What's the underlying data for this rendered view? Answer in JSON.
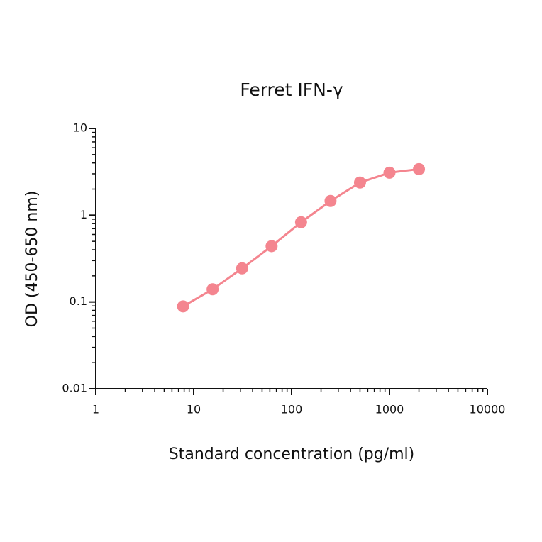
{
  "chart_data": {
    "type": "line",
    "title": "Ferret IFN-γ",
    "x_label": "Standard concentration (pg/ml)",
    "y_label": "OD (450-650 nm)",
    "x_log": true,
    "y_log": true,
    "xlim": [
      1,
      10000
    ],
    "xticks": [
      1,
      10,
      100,
      1000,
      10000
    ],
    "ylim": [
      0.01,
      10
    ],
    "yticks": [
      0.01,
      0.1,
      1,
      10
    ],
    "series": [
      {
        "name": "Ferret IFN-γ",
        "color": "#f4858f",
        "x": [
          7.8,
          15.6,
          31.25,
          62.5,
          125,
          250,
          500,
          1000,
          2000
        ],
        "values": [
          0.089,
          0.14,
          0.244,
          0.44,
          0.83,
          1.46,
          2.38,
          3.09,
          3.4
        ]
      }
    ]
  }
}
